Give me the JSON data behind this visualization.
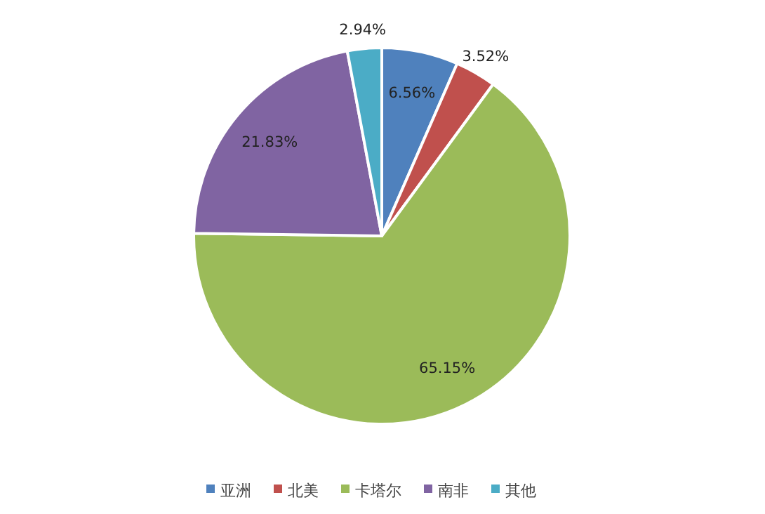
{
  "chart_data": {
    "type": "pie",
    "categories": [
      "亚洲",
      "北美",
      "卡塔尔",
      "南非",
      "其他"
    ],
    "values": [
      6.56,
      3.52,
      65.15,
      21.83,
      2.94
    ],
    "colors": [
      "#4f81bd",
      "#c0504d",
      "#9bbb59",
      "#8064a2",
      "#4bacc6"
    ],
    "value_labels": [
      "6.56%",
      "3.52%",
      "65.15%",
      "21.83%",
      "2.94%"
    ],
    "legend": "bottom"
  }
}
